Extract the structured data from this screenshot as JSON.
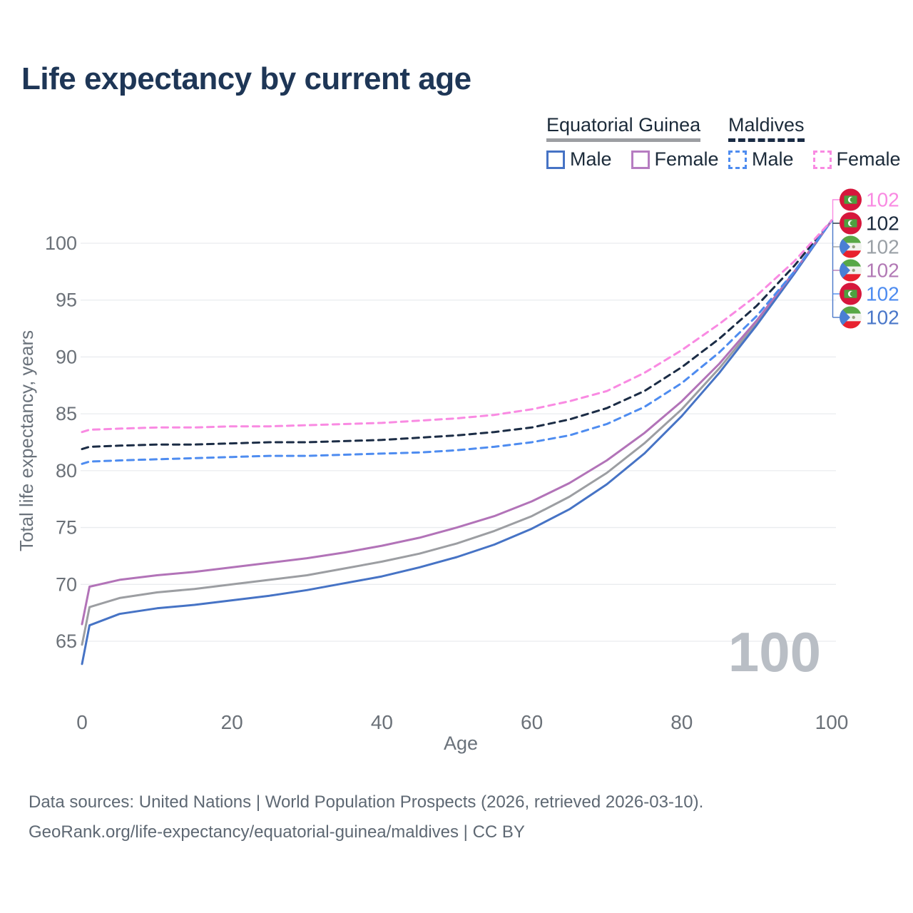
{
  "title": "Life expectancy by current age",
  "legend": {
    "groups": [
      {
        "label": "Equatorial Guinea",
        "underline_style": "solid",
        "underline_color": "#9c9ea2",
        "items": [
          {
            "label": "Male",
            "color": "#4673c5",
            "dashed": false
          },
          {
            "label": "Female",
            "color": "#b67cc1",
            "dashed": false
          }
        ]
      },
      {
        "label": "Maldives",
        "underline_style": "dashed",
        "underline_color": "#1b2c45",
        "items": [
          {
            "label": "Male",
            "color": "#4e8cf0",
            "dashed": true
          },
          {
            "label": "Female",
            "color": "#f98ae2",
            "dashed": true
          }
        ]
      }
    ]
  },
  "watermark": "100",
  "chart_data": {
    "type": "line",
    "title": "Life expectancy by current age",
    "xlabel": "Age",
    "ylabel": "Total life expectancy, years",
    "x_ticks": [
      0,
      20,
      40,
      60,
      80,
      100
    ],
    "y_ticks": [
      65,
      70,
      75,
      80,
      85,
      90,
      95,
      100
    ],
    "xlim": [
      0,
      100
    ],
    "ylim": [
      63,
      103
    ],
    "grid": "horizontal",
    "grid_color": "#eaecef",
    "ages": [
      0,
      1,
      5,
      10,
      15,
      20,
      25,
      30,
      35,
      40,
      45,
      50,
      55,
      60,
      65,
      70,
      75,
      80,
      85,
      90,
      95,
      100
    ],
    "series": [
      {
        "id": "eq-guinea-total",
        "name": "Equatorial Guinea Both sexes",
        "color": "#9c9ea2",
        "dash": null,
        "values": [
          64.7,
          68.0,
          68.8,
          69.3,
          69.6,
          70.0,
          70.4,
          70.8,
          71.4,
          72.0,
          72.7,
          73.6,
          74.7,
          76.0,
          77.7,
          79.8,
          82.4,
          85.4,
          89.0,
          93.0,
          97.4,
          102.0
        ]
      },
      {
        "id": "eq-guinea-male",
        "name": "Equatorial Guinea Male",
        "color": "#4673c5",
        "dash": null,
        "values": [
          63.0,
          66.4,
          67.4,
          67.9,
          68.2,
          68.6,
          69.0,
          69.5,
          70.1,
          70.7,
          71.5,
          72.4,
          73.5,
          74.9,
          76.6,
          78.8,
          81.5,
          84.8,
          88.6,
          92.8,
          97.3,
          102.0
        ]
      },
      {
        "id": "eq-guinea-female",
        "name": "Equatorial Guinea Female",
        "color": "#b273b8",
        "dash": null,
        "values": [
          66.5,
          69.8,
          70.4,
          70.8,
          71.1,
          71.5,
          71.9,
          72.3,
          72.8,
          73.4,
          74.1,
          75.0,
          76.0,
          77.3,
          78.9,
          80.9,
          83.3,
          86.1,
          89.4,
          93.2,
          97.5,
          102.0
        ]
      },
      {
        "id": "maldives-total",
        "name": "Maldives Both sexes",
        "color": "#1b2c45",
        "dash": "9 7",
        "values": [
          81.9,
          82.1,
          82.2,
          82.3,
          82.3,
          82.4,
          82.5,
          82.5,
          82.6,
          82.7,
          82.9,
          83.1,
          83.4,
          83.8,
          84.5,
          85.5,
          87.0,
          89.1,
          91.6,
          94.5,
          98.0,
          102.0
        ]
      },
      {
        "id": "maldives-male",
        "name": "Maldives Male",
        "color": "#4e8cf0",
        "dash": "9 7",
        "values": [
          80.6,
          80.8,
          80.9,
          81.0,
          81.1,
          81.2,
          81.3,
          81.3,
          81.4,
          81.5,
          81.6,
          81.8,
          82.1,
          82.5,
          83.1,
          84.1,
          85.6,
          87.7,
          90.4,
          93.6,
          97.5,
          102.0
        ]
      },
      {
        "id": "maldives-female",
        "name": "Maldives Female",
        "color": "#f98ae2",
        "dash": "9 7",
        "values": [
          83.4,
          83.6,
          83.7,
          83.8,
          83.8,
          83.9,
          83.9,
          84.0,
          84.1,
          84.2,
          84.4,
          84.6,
          84.9,
          85.4,
          86.1,
          87.0,
          88.6,
          90.6,
          92.9,
          95.4,
          98.4,
          102.0
        ]
      }
    ],
    "end_labels": [
      {
        "flag": "maldives",
        "value": "102",
        "color": "#f98ae2",
        "series": "maldives-female"
      },
      {
        "flag": "maldives",
        "value": "102",
        "color": "#1b2a3d",
        "series": "maldives-total"
      },
      {
        "flag": "eq-guinea",
        "value": "102",
        "color": "#9aa0a6",
        "series": "eq-guinea-total"
      },
      {
        "flag": "eq-guinea",
        "value": "102",
        "color": "#b279b5",
        "series": "eq-guinea-female"
      },
      {
        "flag": "maldives",
        "value": "102",
        "color": "#4e8cf0",
        "series": "maldives-male"
      },
      {
        "flag": "eq-guinea",
        "value": "102",
        "color": "#4a77c9",
        "series": "eq-guinea-male"
      }
    ]
  },
  "footer": {
    "line1": "Data sources: United Nations | World Population Prospects (2026, retrieved 2026-03-10).",
    "line2": "GeoRank.org/life-expectancy/equatorial-guinea/maldives | CC BY"
  }
}
